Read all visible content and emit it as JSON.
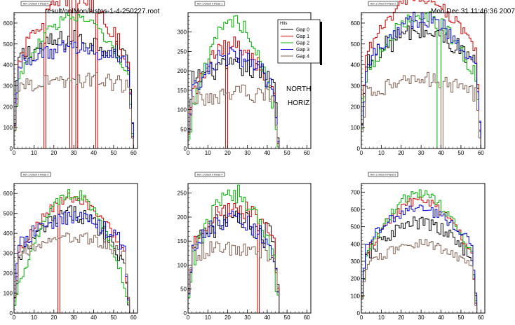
{
  "header": {
    "file_label": "result/onlMon/histos-1-4-250227.root",
    "date_label": "Mon Dec 31 11:46:36 2007"
  },
  "labels": {
    "north": "NORTH",
    "horiz": "HORIZ"
  },
  "legend": {
    "title": "Hits",
    "entries": [
      "Gap 0",
      "Gap 1",
      "Gap 2",
      "Gap 3",
      "Gap 4"
    ]
  },
  "colors": {
    "gap0": "#000000",
    "gap1": "#d00000",
    "gap2": "#00b000",
    "gap3": "#0000d0",
    "gap4": "#806050"
  },
  "chart_data": [
    {
      "type": "line",
      "title": "Arm 1 Orient 0 Panel 0",
      "xlim": [
        0,
        62
      ],
      "ylim": [
        0,
        650
      ],
      "xticks": [
        0,
        10,
        20,
        30,
        40,
        50,
        60
      ],
      "yticks": [
        0,
        100,
        200,
        300,
        400,
        500,
        600
      ],
      "nbins": 60,
      "series": [
        {
          "name": "Gap 0",
          "curve": {
            "type": "shape",
            "peak": 520,
            "edge": 420,
            "noise": 50
          }
        },
        {
          "name": "Gap 1",
          "curve": {
            "type": "shape",
            "peak": 720,
            "edge": 380,
            "noise": 40
          },
          "dips": [
            15,
            28,
            31,
            41
          ]
        },
        {
          "name": "Gap 2",
          "curve": {
            "type": "shape",
            "peak": 630,
            "edge": 300,
            "noise": 30
          }
        },
        {
          "name": "Gap 3",
          "curve": {
            "type": "shape",
            "peak": 480,
            "edge": 400,
            "noise": 40
          }
        },
        {
          "name": "Gap 4",
          "curve": {
            "type": "shape",
            "peak": 330,
            "edge": 300,
            "noise": 40
          }
        }
      ]
    },
    {
      "type": "line",
      "title": "Arm 1 Orient 0 Panel 1",
      "xlim": [
        0,
        62
      ],
      "ylim": [
        0,
        350
      ],
      "xticks": [
        0,
        10,
        20,
        30,
        40,
        50,
        60
      ],
      "yticks": [
        0,
        50,
        100,
        150,
        200,
        250,
        300
      ],
      "nbins": 46,
      "series": [
        {
          "name": "Gap 0",
          "curve": {
            "type": "shape",
            "peak": 210,
            "edge": 170,
            "noise": 25
          }
        },
        {
          "name": "Gap 1",
          "curve": {
            "type": "shape",
            "peak": 270,
            "edge": 110,
            "noise": 25
          },
          "dips": [
            19
          ]
        },
        {
          "name": "Gap 2",
          "curve": {
            "type": "shape",
            "peak": 330,
            "edge": 60,
            "noise": 20
          }
        },
        {
          "name": "Gap 3",
          "curve": {
            "type": "shape",
            "peak": 240,
            "edge": 140,
            "noise": 25
          }
        },
        {
          "name": "Gap 4",
          "curve": {
            "type": "shape",
            "peak": 140,
            "edge": 130,
            "noise": 25
          }
        }
      ]
    },
    {
      "type": "line",
      "title": "Arm 1 Orient 0 Panel 2",
      "xlim": [
        0,
        62
      ],
      "ylim": [
        0,
        650
      ],
      "xticks": [
        0,
        10,
        20,
        30,
        40,
        50,
        60
      ],
      "yticks": [
        0,
        100,
        200,
        300,
        400,
        500,
        600
      ],
      "nbins": 60,
      "series": [
        {
          "name": "Gap 0",
          "curve": {
            "type": "shape",
            "peak": 560,
            "edge": 380,
            "noise": 50
          }
        },
        {
          "name": "Gap 1",
          "curve": {
            "type": "shape",
            "peak": 720,
            "edge": 420,
            "noise": 30
          }
        },
        {
          "name": "Gap 2",
          "curve": {
            "type": "shape",
            "peak": 640,
            "edge": 300,
            "noise": 40
          },
          "dips": [
            38,
            39
          ]
        },
        {
          "name": "Gap 3",
          "curve": {
            "type": "shape",
            "peak": 620,
            "edge": 370,
            "noise": 40
          }
        },
        {
          "name": "Gap 4",
          "curve": {
            "type": "shape",
            "peak": 330,
            "edge": 250,
            "noise": 40
          },
          "dips": [
            40
          ]
        }
      ]
    },
    {
      "type": "line",
      "title": "Arm 1 Orient 0 Panel 3",
      "xlim": [
        0,
        62
      ],
      "ylim": [
        0,
        650
      ],
      "xticks": [
        0,
        10,
        20,
        30,
        40,
        50,
        60
      ],
      "yticks": [
        0,
        100,
        200,
        300,
        400,
        500,
        600
      ],
      "nbins": 58,
      "series": [
        {
          "name": "Gap 0",
          "curve": {
            "type": "shape",
            "peak": 500,
            "edge": 220,
            "noise": 40
          }
        },
        {
          "name": "Gap 1",
          "curve": {
            "type": "shape",
            "peak": 580,
            "edge": 250,
            "noise": 30
          },
          "dips": [
            22
          ]
        },
        {
          "name": "Gap 2",
          "curve": {
            "type": "shape",
            "peak": 600,
            "edge": 80,
            "noise": 30
          }
        },
        {
          "name": "Gap 3",
          "curve": {
            "type": "shape",
            "peak": 480,
            "edge": 320,
            "noise": 40
          }
        },
        {
          "name": "Gap 4",
          "curve": {
            "type": "shape",
            "peak": 380,
            "edge": 280,
            "noise": 30
          }
        }
      ]
    },
    {
      "type": "line",
      "title": "Arm 1 Orient 0 Panel 4",
      "xlim": [
        0,
        62
      ],
      "ylim": [
        0,
        270
      ],
      "xticks": [
        0,
        10,
        20,
        30,
        40,
        50,
        60
      ],
      "yticks": [
        0,
        50,
        100,
        150,
        200,
        250
      ],
      "nbins": 46,
      "series": [
        {
          "name": "Gap 0",
          "curve": {
            "type": "shape",
            "peak": 190,
            "edge": 150,
            "noise": 25
          }
        },
        {
          "name": "Gap 1",
          "curve": {
            "type": "shape",
            "peak": 220,
            "edge": 140,
            "noise": 20
          },
          "dips": [
            35
          ]
        },
        {
          "name": "Gap 2",
          "curve": {
            "type": "shape",
            "peak": 250,
            "edge": 80,
            "noise": 20
          }
        },
        {
          "name": "Gap 3",
          "curve": {
            "type": "shape",
            "peak": 200,
            "edge": 110,
            "noise": 20
          }
        },
        {
          "name": "Gap 4",
          "curve": {
            "type": "shape",
            "peak": 140,
            "edge": 120,
            "noise": 20
          }
        }
      ]
    },
    {
      "type": "line",
      "title": "Arm 1 Orient 0 Panel 5",
      "xlim": [
        0,
        62
      ],
      "ylim": [
        0,
        750
      ],
      "xticks": [
        0,
        10,
        20,
        30,
        40,
        50,
        60
      ],
      "yticks": [
        0,
        100,
        200,
        300,
        400,
        500,
        600,
        700
      ],
      "nbins": 58,
      "series": [
        {
          "name": "Gap 0",
          "curve": {
            "type": "shape",
            "peak": 520,
            "edge": 300,
            "noise": 40
          }
        },
        {
          "name": "Gap 1",
          "curve": {
            "type": "shape",
            "peak": 650,
            "edge": 300,
            "noise": 30
          }
        },
        {
          "name": "Gap 2",
          "curve": {
            "type": "shape",
            "peak": 690,
            "edge": 280,
            "noise": 30
          }
        },
        {
          "name": "Gap 3",
          "curve": {
            "type": "shape",
            "peak": 600,
            "edge": 380,
            "noise": 30
          }
        },
        {
          "name": "Gap 4",
          "curve": {
            "type": "shape",
            "peak": 400,
            "edge": 250,
            "noise": 30
          }
        }
      ]
    }
  ]
}
